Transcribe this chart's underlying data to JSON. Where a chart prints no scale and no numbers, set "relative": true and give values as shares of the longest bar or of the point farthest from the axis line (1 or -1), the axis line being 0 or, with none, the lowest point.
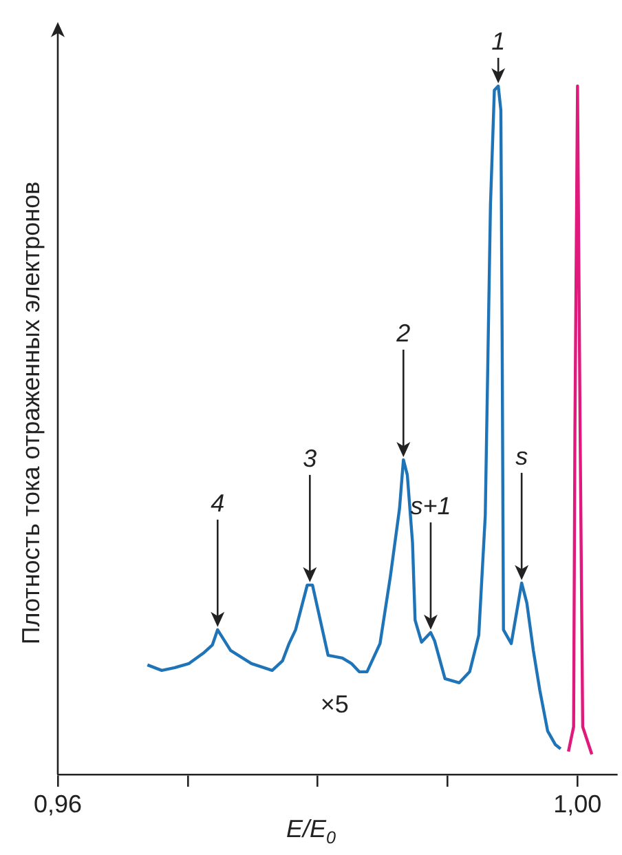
{
  "chart_data": {
    "type": "line",
    "xlabel": "E/E$_{0}$",
    "ylabel": "Плотность тока отраженных электронов",
    "relative": true,
    "xlim": [
      0.96,
      1.003
    ],
    "xticks": [
      {
        "value": 0.96,
        "label": "0,96"
      },
      {
        "value": 0.97,
        "label": null
      },
      {
        "value": 0.98,
        "label": null
      },
      {
        "value": 0.99,
        "label": null
      },
      {
        "value": 1.0,
        "label": "1,00"
      }
    ],
    "tick_labels": "x",
    "grid": false,
    "legend": false,
    "marker": "none",
    "line_style": "solid",
    "series": [
      {
        "color": "#1f74b8",
        "x": [
          0.9669,
          0.968,
          0.969,
          0.9701,
          0.9712,
          0.9719,
          0.9723,
          0.9733,
          0.9749,
          0.9765,
          0.9773,
          0.9778,
          0.9783,
          0.9792,
          0.9796,
          0.9808,
          0.9819,
          0.9826,
          0.9832,
          0.9838,
          0.9848,
          0.9856,
          0.9863,
          0.9866,
          0.9869,
          0.9873,
          0.9875,
          0.988,
          0.9887,
          0.989,
          0.9898,
          0.9909,
          0.9917,
          0.9924,
          0.9929,
          0.9933,
          0.9936,
          0.9939,
          0.9941,
          0.9942,
          0.9943,
          0.9949,
          0.9957,
          0.9961,
          0.9966,
          0.9971,
          0.9977,
          0.9983,
          0.9987
        ],
        "values": [
          0.159,
          0.151,
          0.155,
          0.161,
          0.176,
          0.188,
          0.21,
          0.18,
          0.161,
          0.151,
          0.165,
          0.19,
          0.21,
          0.275,
          0.275,
          0.173,
          0.169,
          0.161,
          0.149,
          0.149,
          0.19,
          0.288,
          0.386,
          0.457,
          0.435,
          0.337,
          0.224,
          0.192,
          0.206,
          0.194,
          0.139,
          0.133,
          0.149,
          0.202,
          0.376,
          0.827,
          0.994,
          1,
          0.965,
          0.631,
          0.21,
          0.19,
          0.278,
          0.249,
          0.18,
          0.122,
          0.063,
          0.043,
          0.037
        ]
      },
      {
        "color": "#e0197d",
        "x": [
          0.9993,
          0.9997,
          0.9998,
          1.0,
          1.0002,
          1.0004,
          1.0011
        ],
        "values": [
          0.033,
          0.069,
          0.5,
          1,
          0.5,
          0.069,
          0.029
        ]
      }
    ],
    "annotations": [
      {
        "text": "1",
        "x": 0.9939,
        "y": 1
      },
      {
        "text": "2",
        "x": 0.9866,
        "y": 0.457
      },
      {
        "text": "3",
        "x": 0.9794,
        "y": 0.275
      },
      {
        "text": "4",
        "x": 0.9723,
        "y": 0.21
      },
      {
        "text": "s+1",
        "x": 0.9887,
        "y": 0.206
      },
      {
        "text": "s",
        "x": 0.9957,
        "y": 0.278
      },
      "×5"
    ]
  }
}
